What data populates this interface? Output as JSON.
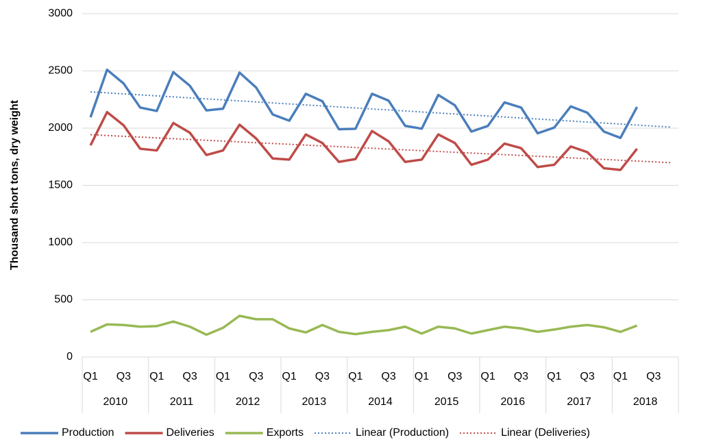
{
  "chart_data": {
    "type": "line",
    "y_label": "Thousand short tons, dry weight",
    "categories": [
      "Q1",
      null,
      "Q3",
      null,
      "Q1",
      null,
      "Q3",
      null,
      "Q1",
      null,
      "Q3",
      null,
      "Q1",
      null,
      "Q3",
      null,
      "Q1",
      null,
      "Q3",
      null,
      "Q1",
      null,
      "Q3",
      null,
      "Q1",
      null,
      "Q3",
      null,
      "Q1",
      null,
      "Q3",
      null,
      "Q1",
      null,
      "Q3",
      null
    ],
    "groups": [
      "2010",
      "2011",
      "2012",
      "2013",
      "2014",
      "2015",
      "2016",
      "2017",
      "2018"
    ],
    "series": [
      {
        "name": "Production",
        "color": "#4a7ebb",
        "trendline": "linear",
        "trend_name": "Linear (Production)",
        "values": [
          2095,
          2510,
          2390,
          2180,
          2150,
          2490,
          2370,
          2155,
          2170,
          2485,
          2355,
          2120,
          2065,
          2300,
          2235,
          1990,
          1995,
          2300,
          2240,
          2020,
          1995,
          2290,
          2200,
          1970,
          2020,
          2225,
          2180,
          1955,
          2005,
          2190,
          2135,
          1970,
          1915,
          2185,
          null,
          null
        ]
      },
      {
        "name": "Deliveries",
        "color": "#be4b48",
        "trendline": "linear",
        "trend_name": "Linear (Deliveries)",
        "values": [
          1850,
          2140,
          2025,
          1820,
          1805,
          2045,
          1960,
          1765,
          1805,
          2030,
          1910,
          1735,
          1725,
          1945,
          1870,
          1705,
          1730,
          1975,
          1885,
          1705,
          1725,
          1945,
          1870,
          1680,
          1725,
          1865,
          1825,
          1660,
          1680,
          1840,
          1790,
          1650,
          1635,
          1820,
          null,
          null
        ]
      },
      {
        "name": "Exports",
        "color": "#98b954",
        "values": [
          220,
          285,
          280,
          265,
          270,
          310,
          265,
          195,
          255,
          360,
          330,
          330,
          250,
          215,
          280,
          220,
          200,
          220,
          235,
          265,
          205,
          265,
          250,
          205,
          235,
          265,
          250,
          220,
          240,
          265,
          280,
          260,
          220,
          275,
          null,
          null
        ]
      }
    ],
    "ylim": [
      0,
      3000
    ],
    "yticks": [
      0,
      500,
      1000,
      1500,
      2000,
      2500,
      3000
    ],
    "grid": true,
    "legend": "bottom"
  }
}
